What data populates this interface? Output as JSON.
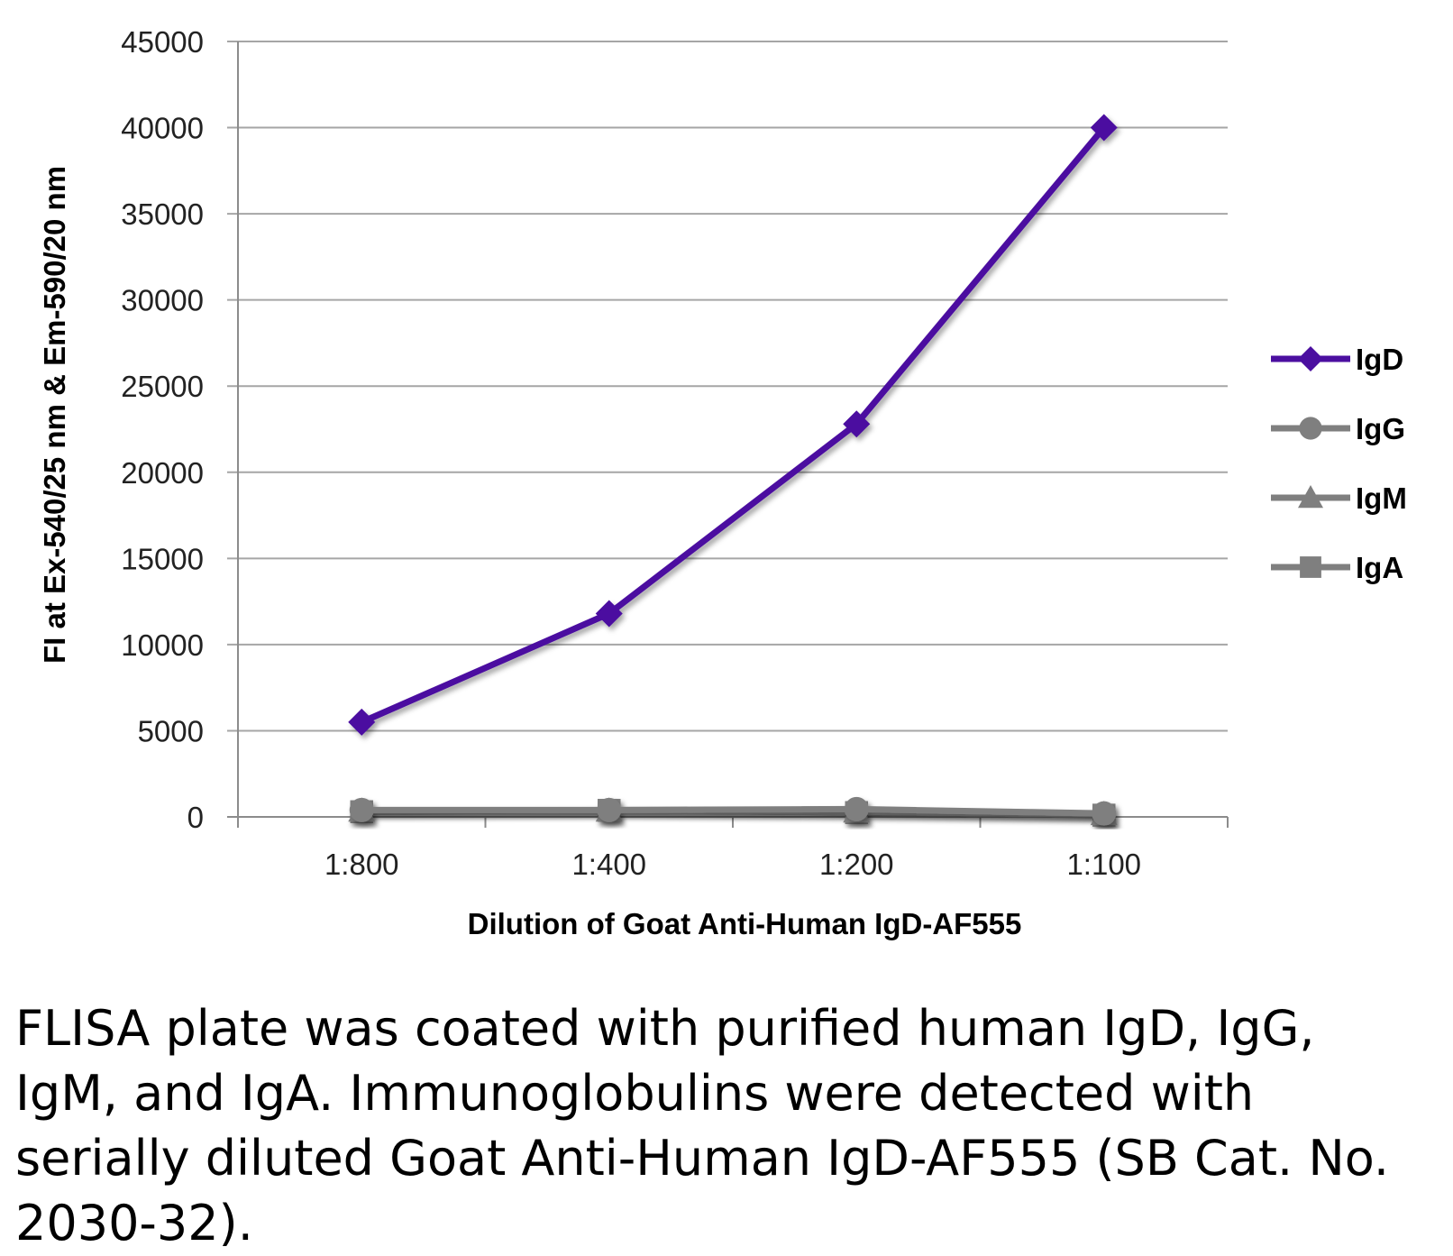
{
  "chart_data": {
    "type": "line",
    "categories": [
      "1:800",
      "1:400",
      "1:200",
      "1:100"
    ],
    "series": [
      {
        "name": "IgD",
        "values": [
          5500,
          11800,
          22800,
          40000
        ],
        "color": "#4B0FA0",
        "marker": "diamond"
      },
      {
        "name": "IgG",
        "values": [
          400,
          400,
          450,
          200
        ],
        "color": "#7F7F7F",
        "marker": "circle"
      },
      {
        "name": "IgM",
        "values": [
          350,
          350,
          300,
          150
        ],
        "color": "#7F7F7F",
        "marker": "triangle"
      },
      {
        "name": "IgA",
        "values": [
          300,
          380,
          250,
          100
        ],
        "color": "#7F7F7F",
        "marker": "square"
      }
    ],
    "xlabel": "Dilution of Goat Anti-Human IgD-AF555",
    "ylabel": "FI at Ex-540/25 nm & Em-590/20 nm",
    "ylim": [
      0,
      45000
    ],
    "yticks": [
      "0",
      "5000",
      "10000",
      "15000",
      "20000",
      "25000",
      "30000",
      "35000",
      "40000",
      "45000"
    ],
    "grid": true,
    "legend_position": "right"
  },
  "caption": "FLISA plate was coated with purified human IgD, IgG, IgM, and IgA.  Immunoglobulins were detected with serially diluted Goat Anti-Human IgD-AF555 (SB Cat. No. 2030-32)."
}
